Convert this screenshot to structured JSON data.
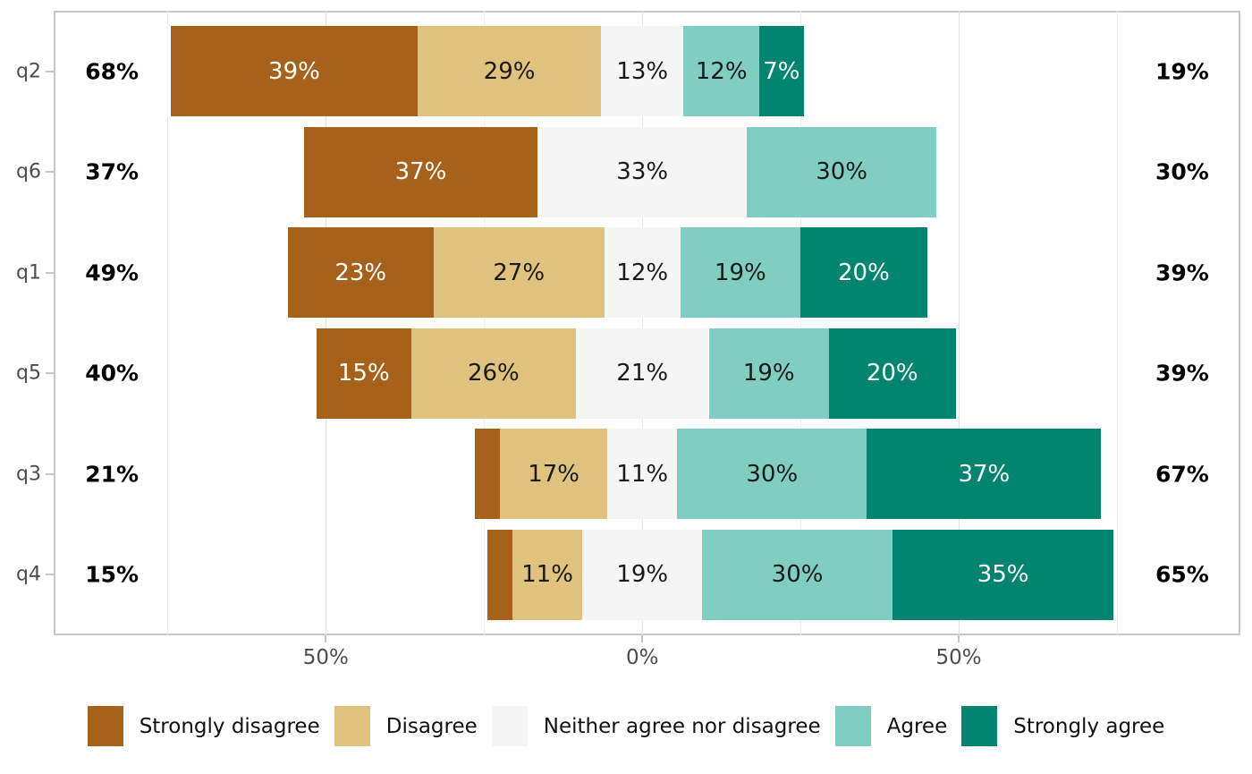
{
  "chart_data": {
    "type": "bar",
    "variant": "diverging_stacked_likert",
    "title": "",
    "categories": [
      "q2",
      "q6",
      "q1",
      "q5",
      "q3",
      "q4"
    ],
    "levels": [
      {
        "name": "Strongly disagree",
        "color": "#a6611a",
        "label_color": "#ffffff"
      },
      {
        "name": "Disagree",
        "color": "#dfc27d",
        "label_color": "#1a1a1a"
      },
      {
        "name": "Neither agree nor disagree",
        "color": "#f5f5f5",
        "label_color": "#1a1a1a"
      },
      {
        "name": "Agree",
        "color": "#80cdc1",
        "label_color": "#1a1a1a"
      },
      {
        "name": "Strongly agree",
        "color": "#018571",
        "label_color": "#ffffff"
      }
    ],
    "series": [
      {
        "name": "Strongly disagree",
        "values": [
          39,
          37,
          23,
          15,
          4,
          4
        ]
      },
      {
        "name": "Disagree",
        "values": [
          29,
          0,
          27,
          26,
          17,
          11
        ]
      },
      {
        "name": "Neither agree nor disagree",
        "values": [
          13,
          33,
          12,
          21,
          11,
          19
        ]
      },
      {
        "name": "Agree",
        "values": [
          12,
          30,
          19,
          19,
          30,
          30
        ]
      },
      {
        "name": "Strongly agree",
        "values": [
          7,
          0,
          20,
          20,
          37,
          35
        ]
      }
    ],
    "totals_left": [
      "68%",
      "37%",
      "49%",
      "40%",
      "21%",
      "15%"
    ],
    "totals_right": [
      "19%",
      "30%",
      "39%",
      "39%",
      "67%",
      "65%"
    ],
    "label_min_pct": 5,
    "centering": "neutral_split_at_zero",
    "x_axis": {
      "major_ticks": [
        {
          "value": -50,
          "label": "50%"
        },
        {
          "value": 0,
          "label": "0%"
        },
        {
          "value": 50,
          "label": "50%"
        }
      ],
      "minor_ticks": [
        -75,
        -25,
        25,
        75
      ],
      "range": [
        -93,
        94.5
      ]
    },
    "grid": "vertical_light_gray",
    "legend_position": "bottom"
  }
}
